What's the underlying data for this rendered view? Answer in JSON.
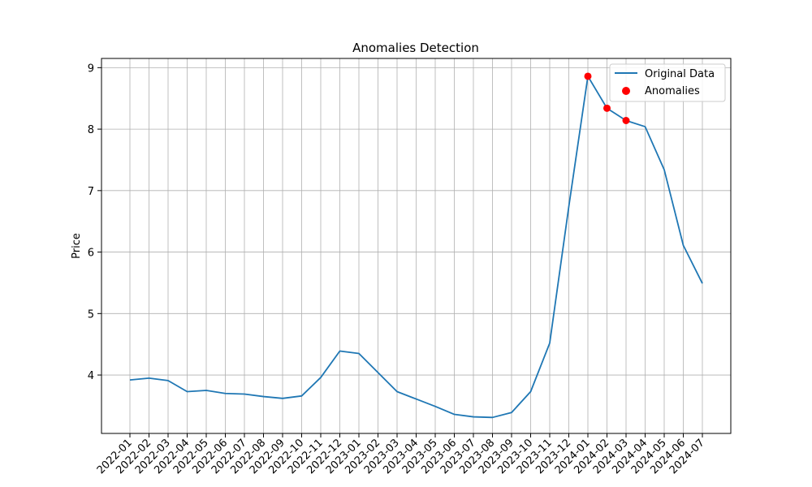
{
  "chart_data": {
    "type": "line",
    "title": "Anomalies Detection",
    "xlabel": "",
    "ylabel": "Price",
    "categories": [
      "2022-01",
      "2022-02",
      "2022-03",
      "2022-04",
      "2022-05",
      "2022-06",
      "2022-07",
      "2022-08",
      "2022-09",
      "2022-10",
      "2022-11",
      "2022-12",
      "2023-01",
      "2023-02",
      "2023-03",
      "2023-04",
      "2023-05",
      "2023-06",
      "2023-07",
      "2023-08",
      "2023-09",
      "2023-10",
      "2023-11",
      "2023-12",
      "2024-01",
      "2024-02",
      "2024-03",
      "2024-04",
      "2024-05",
      "2024-06",
      "2024-07"
    ],
    "series": [
      {
        "name": "Original Data",
        "color": "#1f77b4",
        "values": [
          3.92,
          3.95,
          3.91,
          3.73,
          3.75,
          3.7,
          3.69,
          3.65,
          3.62,
          3.66,
          3.96,
          4.39,
          4.35,
          4.04,
          3.73,
          3.61,
          3.49,
          3.36,
          3.32,
          3.31,
          3.39,
          3.73,
          4.52,
          6.74,
          8.86,
          8.34,
          8.14,
          8.04,
          7.34,
          6.11,
          5.49
        ]
      }
    ],
    "anomalies": {
      "name": "Anomalies",
      "color": "#ff0000",
      "categories": [
        "2024-01",
        "2024-02",
        "2024-03"
      ],
      "values": [
        8.86,
        8.34,
        8.14
      ]
    },
    "yticks": [
      4,
      5,
      6,
      7,
      8,
      9
    ],
    "ylim": [
      3.05,
      9.15
    ],
    "grid": true,
    "legend_position": "top-right"
  }
}
